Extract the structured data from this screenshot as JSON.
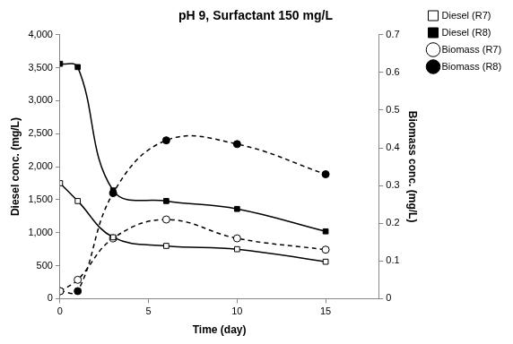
{
  "chart_data": {
    "type": "line",
    "title": "pH 9, Surfactant 150 mg/L",
    "x_label": "Time (day)",
    "y_label": "Diesel conc. (mg/L)",
    "y2_label": "Biomass conc. (mg/L)",
    "x": [
      0,
      1,
      3,
      6,
      10,
      15
    ],
    "series": [
      {
        "name": "Diesel (R7)",
        "color": "#000000",
        "marker": "square-open",
        "line_style": "solid",
        "axis": "y",
        "values": [
          1750,
          1480,
          930,
          800,
          750,
          560
        ]
      },
      {
        "name": "Diesel (R8)",
        "color": "#000000",
        "marker": "square",
        "line_style": "solid",
        "axis": "y",
        "values": [
          3560,
          3510,
          1640,
          1480,
          1360,
          1020
        ]
      },
      {
        "name": "Biomass (R7)",
        "color": "#000000",
        "marker": "circle-open",
        "line_style": "dashed",
        "axis": "y2",
        "values": [
          0.02,
          0.05,
          0.16,
          0.21,
          0.16,
          0.13
        ]
      },
      {
        "name": "Biomass (R8)",
        "color": "#000000",
        "marker": "circle",
        "line_style": "dashed",
        "axis": "y2",
        "values": [
          0.02,
          0.02,
          0.28,
          0.42,
          0.41,
          0.33
        ]
      }
    ],
    "xlim": [
      0,
      18
    ],
    "xticks": [
      0,
      5,
      10,
      15
    ],
    "ylim": [
      0,
      4000
    ],
    "yticks": [
      0,
      500,
      {
        "value": 1000,
        "label": "1,000"
      },
      {
        "value": 1500,
        "label": "1,500"
      },
      {
        "value": 2000,
        "label": "2,000"
      },
      {
        "value": 2500,
        "label": "2,500"
      },
      {
        "value": 3000,
        "label": "3,000"
      },
      {
        "value": 3500,
        "label": "3,500"
      },
      {
        "value": 4000,
        "label": "4,000"
      }
    ],
    "y2lim": [
      0,
      0.7
    ],
    "y2ticks": [
      0,
      0.1,
      0.2,
      0.3,
      0.4,
      0.5,
      0.6,
      0.7
    ],
    "grid": false,
    "legend": "right"
  }
}
